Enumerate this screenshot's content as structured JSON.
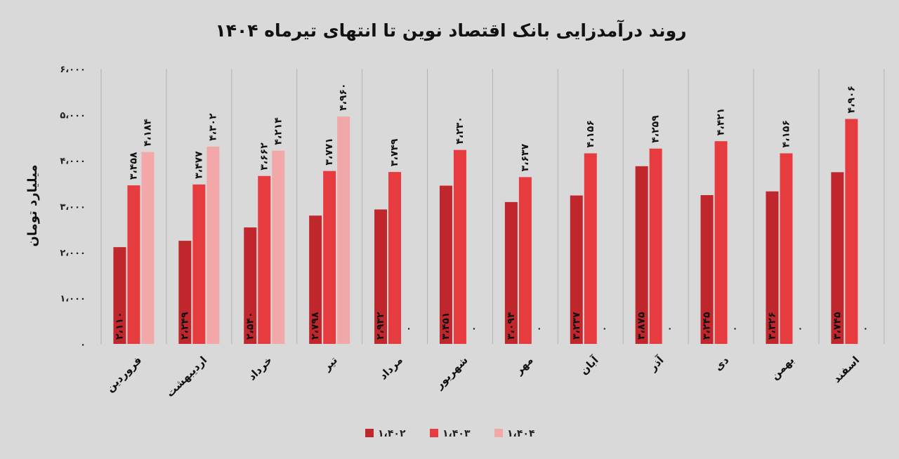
{
  "chart_data": {
    "type": "bar",
    "title": "روند درآمدزایی بانک اقتصاد نوین تا انتهای تیرماه ۱۴۰۴",
    "ylabel": "میلیارد تومان",
    "xlabel": "",
    "ylim": [
      0,
      6000
    ],
    "yticks": [
      0,
      1000,
      2000,
      3000,
      4000,
      5000,
      6000
    ],
    "ytick_labels": [
      "۰",
      "۱،۰۰۰",
      "۲،۰۰۰",
      "۳،۰۰۰",
      "۴،۰۰۰",
      "۵،۰۰۰",
      "۶،۰۰۰"
    ],
    "grid": "vertical category separators",
    "legend_position": "bottom-center",
    "categories": [
      "فروردین",
      "اردیبهشت",
      "خرداد",
      "تیر",
      "مرداد",
      "شهریور",
      "مهر",
      "آبان",
      "آذر",
      "دی",
      "بهمن",
      "اسفند"
    ],
    "series": [
      {
        "name": "۱،۴۰۲",
        "color": "#c0272d",
        "values": [
          2110,
          2249,
          2540,
          2798,
          2932,
          3451,
          3094,
          3237,
          3875,
          3245,
          3326,
          3745
        ],
        "labels": [
          "۲،۱۱۰",
          "۲،۲۴۹",
          "۲،۵۴۰",
          "۲،۷۹۸",
          "۲،۹۳۲",
          "۳،۴۵۱",
          "۳،۰۹۴",
          "۳،۲۳۷",
          "۳،۸۷۵",
          "۳،۲۴۵",
          "۳،۳۲۶",
          "۳،۷۴۵"
        ]
      },
      {
        "name": "۱،۴۰۳",
        "color": "#e63c3f",
        "values": [
          3458,
          3477,
          3662,
          3771,
          3749,
          4230,
          3637,
          4156,
          4259,
          4421,
          4156,
          4906
        ],
        "labels": [
          "۳،۴۵۸",
          "۳،۴۷۷",
          "۳،۶۶۲",
          "۳،۷۷۱",
          "۳،۷۴۹",
          "۴،۲۳۰",
          "۳،۶۳۷",
          "۴،۱۵۶",
          "۴،۲۵۹",
          "۴،۴۲۱",
          "۴،۱۵۶",
          "۴،۹۰۶"
        ]
      },
      {
        "name": "۱،۴۰۴",
        "color": "#f2a7a8",
        "values": [
          4184,
          4302,
          4214,
          4960,
          0,
          0,
          0,
          0,
          0,
          0,
          0,
          0
        ],
        "labels": [
          "۴،۱۸۴",
          "۴،۳۰۲",
          "۴،۲۱۴",
          "۴،۹۶۰",
          "۰",
          "۰",
          "۰",
          "۰",
          "۰",
          "۰",
          "۰",
          "۰"
        ]
      }
    ]
  }
}
